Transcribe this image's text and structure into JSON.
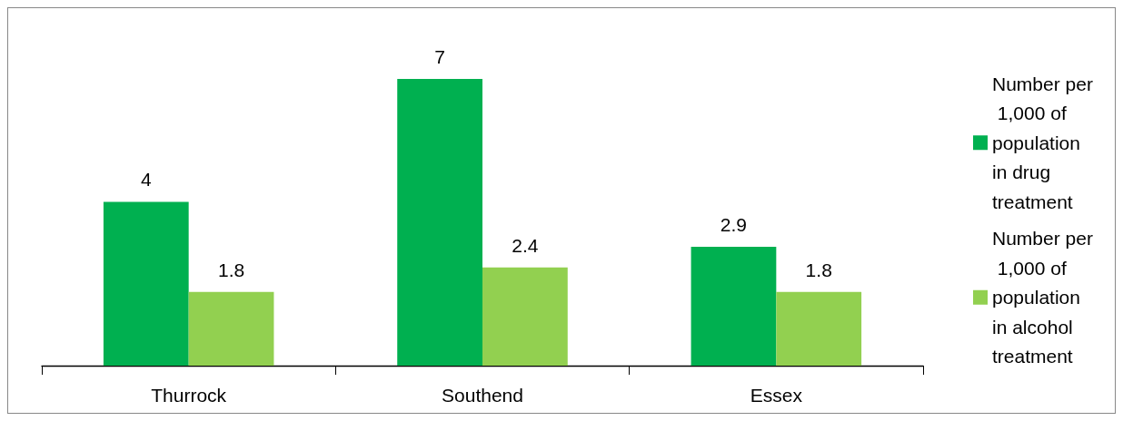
{
  "chart_data": {
    "type": "bar",
    "categories": [
      "Thurrock",
      "Southend",
      "Essex"
    ],
    "series": [
      {
        "name": "Number per 1,000 of population in drug treatment",
        "color": "#00b050",
        "values": [
          4,
          7,
          2.9
        ]
      },
      {
        "name": "Number per 1,000 of population in alcohol treatment",
        "color": "#92d050",
        "values": [
          1.8,
          2.4,
          1.8
        ]
      }
    ],
    "data_labels": true,
    "legend": "right"
  }
}
